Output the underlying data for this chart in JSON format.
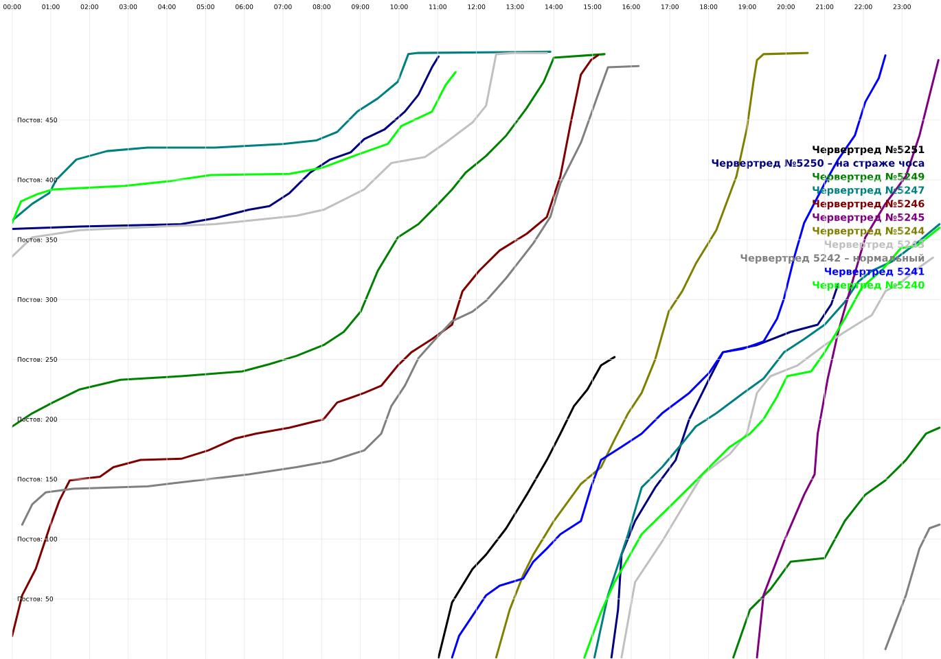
{
  "chart_data": {
    "type": "line",
    "xlim": [
      0,
      24
    ],
    "ylim": [
      0,
      550
    ],
    "xticks": [
      {
        "value": 0,
        "label": "00:00"
      },
      {
        "value": 1,
        "label": "01:00"
      },
      {
        "value": 2,
        "label": "02:00"
      },
      {
        "value": 3,
        "label": "03:00"
      },
      {
        "value": 4,
        "label": "04:00"
      },
      {
        "value": 5,
        "label": "05:00"
      },
      {
        "value": 6,
        "label": "06:00"
      },
      {
        "value": 7,
        "label": "07:00"
      },
      {
        "value": 8,
        "label": "08:00"
      },
      {
        "value": 9,
        "label": "09:00"
      },
      {
        "value": 10,
        "label": "10:00"
      },
      {
        "value": 11,
        "label": "11:00"
      },
      {
        "value": 12,
        "label": "12:00"
      },
      {
        "value": 13,
        "label": "13:00"
      },
      {
        "value": 14,
        "label": "14:00"
      },
      {
        "value": 15,
        "label": "15:00"
      },
      {
        "value": 16,
        "label": "16:00"
      },
      {
        "value": 17,
        "label": "17:00"
      },
      {
        "value": 18,
        "label": "18:00"
      },
      {
        "value": 19,
        "label": "19:00"
      },
      {
        "value": 20,
        "label": "20:00"
      },
      {
        "value": 21,
        "label": "21:00"
      },
      {
        "value": 22,
        "label": "22:00"
      },
      {
        "value": 23,
        "label": "23:00"
      }
    ],
    "yticks": [
      {
        "value": 50,
        "label": "Постов: 50"
      },
      {
        "value": 100,
        "label": "Постов: 100"
      },
      {
        "value": 150,
        "label": "Постов: 150"
      },
      {
        "value": 200,
        "label": "Постов: 200"
      },
      {
        "value": 250,
        "label": "Постов: 250"
      },
      {
        "value": 300,
        "label": "Постов: 300"
      },
      {
        "value": 350,
        "label": "Постов: 350"
      },
      {
        "value": 400,
        "label": "Постов: 400"
      },
      {
        "value": 450,
        "label": "Постов: 450"
      }
    ],
    "grid": true,
    "legend": "right",
    "series": [
      {
        "name": "Червертред №5251",
        "color": "#000000",
        "x": [
          11.02,
          11.37,
          11.9,
          12.25,
          12.77,
          13.3,
          13.82,
          14.17,
          14.52,
          14.87,
          15.22,
          15.57
        ],
        "values": [
          1,
          47,
          75,
          87,
          109,
          137,
          166,
          188,
          211,
          225,
          245,
          252
        ]
      },
      {
        "name": "Червертред №5250 – на страже чоса",
        "color": "#000080",
        "x": [
          0,
          1.75,
          4.37,
          5.25,
          6.12,
          6.65,
          7.17,
          7.7,
          8.22,
          8.75,
          9.1,
          9.62,
          10.15,
          10.5,
          10.85,
          11.02,
          null,
          15.49,
          15.66,
          15.75,
          16.1,
          16.62,
          17.15,
          17.5,
          18.02,
          18.37,
          19.25,
          20.12,
          20.82,
          21.17,
          21.35
        ],
        "values": [
          359,
          361,
          363,
          368,
          375,
          378,
          389,
          406,
          417,
          423,
          434,
          442,
          457,
          471,
          494,
          503,
          null,
          1,
          41,
          87,
          115,
          143,
          166,
          200,
          234,
          256,
          262,
          273,
          279,
          296,
          313
        ]
      },
      {
        "name": "Червертред №5249",
        "color": "#008000",
        "x": [
          0,
          0.52,
          1.05,
          1.75,
          2.8,
          4.37,
          5.95,
          6.65,
          7.35,
          8.05,
          8.57,
          9.01,
          9.45,
          9.97,
          10.5,
          11.02,
          11.37,
          11.72,
          12.25,
          12.77,
          13.3,
          13.74,
          14.0,
          15.31,
          null,
          18.64,
          19.07,
          19.6,
          20.12,
          21.0,
          21.52,
          22.05,
          22.57,
          23.1,
          23.62,
          23.97
        ],
        "values": [
          194,
          205,
          214,
          225,
          233,
          236,
          240,
          246,
          253,
          262,
          273,
          290,
          324,
          352,
          363,
          380,
          392,
          406,
          420,
          437,
          460,
          482,
          502,
          505,
          null,
          1,
          41,
          58,
          81,
          84,
          115,
          137,
          149,
          166,
          188,
          193
        ]
      },
      {
        "name": "Червертред №5247",
        "color": "#008080",
        "x": [
          0,
          0.52,
          0.96,
          1.14,
          1.66,
          2.45,
          3.5,
          5.25,
          7.0,
          7.87,
          8.4,
          8.92,
          9.45,
          9.97,
          10.24,
          10.5,
          13.91,
          null,
          15.05,
          15.4,
          15.92,
          16.27,
          16.8,
          17.32,
          17.67,
          18.2,
          18.9,
          19.42,
          19.95,
          20.47,
          21.0,
          21.52,
          21.87,
          22.22,
          22.75,
          23.45,
          23.97
        ],
        "values": [
          366,
          380,
          389,
          400,
          417,
          424,
          427,
          427,
          430,
          433,
          440,
          457,
          468,
          482,
          505,
          506,
          507,
          null,
          1,
          53,
          104,
          143,
          160,
          180,
          194,
          205,
          222,
          234,
          256,
          267,
          279,
          298,
          315,
          324,
          332,
          349,
          363
        ]
      },
      {
        "name": "Червертред №5246",
        "color": "#800000",
        "x": [
          0,
          0.26,
          0.61,
          0.96,
          1.22,
          1.49,
          2.27,
          2.62,
          3.32,
          4.37,
          5.07,
          5.77,
          6.3,
          7.17,
          8.05,
          8.4,
          9.1,
          9.54,
          9.97,
          10.32,
          10.85,
          11.37,
          11.64,
          12.07,
          12.6,
          13.3,
          13.82,
          14.17,
          14.44,
          14.7,
          14.96,
          15.14
        ],
        "values": [
          19,
          53,
          75,
          109,
          132,
          149,
          152,
          160,
          166,
          167,
          174,
          184,
          188,
          193,
          200,
          214,
          222,
          228,
          245,
          256,
          267,
          279,
          307,
          324,
          341,
          355,
          369,
          403,
          448,
          488,
          500,
          504
        ]
      },
      {
        "name": "Червертред №5245",
        "color": "#800080",
        "x": [
          19.25,
          19.42,
          19.95,
          20.47,
          20.74,
          20.82,
          21.08,
          21.35,
          21.7,
          22.05,
          22.57,
          23.1,
          23.45,
          23.8,
          23.94
        ],
        "values": [
          1,
          53,
          98,
          137,
          154,
          188,
          234,
          273,
          313,
          352,
          380,
          403,
          437,
          482,
          500
        ]
      },
      {
        "name": "Червертред №5244",
        "color": "#808000",
        "x": [
          12.51,
          12.86,
          13.21,
          13.47,
          14.0,
          14.7,
          15.22,
          15.57,
          15.92,
          16.27,
          16.62,
          16.97,
          17.32,
          17.67,
          18.2,
          18.72,
          18.99,
          19.16,
          19.25,
          19.42,
          20.56
        ],
        "values": [
          1,
          41,
          70,
          87,
          115,
          146,
          160,
          183,
          205,
          222,
          250,
          290,
          307,
          330,
          358,
          403,
          443,
          482,
          500,
          505,
          506
        ]
      },
      {
        "name": "Червертред 5243",
        "color": "#c0c0c0",
        "x": [
          0,
          0.52,
          1.75,
          5.25,
          7.35,
          8.05,
          9.1,
          9.8,
          10.67,
          11.2,
          11.9,
          12.25,
          12.51,
          12.95,
          13.82,
          null,
          15.75,
          16.1,
          16.45,
          16.8,
          17.32,
          17.85,
          18.55,
          18.99,
          19.25,
          19.6,
          20.3,
          21.0,
          21.52,
          22.22,
          22.57,
          22.92,
          23.45,
          23.8
        ],
        "values": [
          336,
          352,
          358,
          363,
          370,
          375,
          392,
          414,
          419,
          431,
          448,
          462,
          505,
          506,
          506,
          null,
          1,
          64,
          81,
          98,
          126,
          154,
          171,
          188,
          222,
          236,
          245,
          262,
          273,
          287,
          307,
          313,
          327,
          335
        ]
      },
      {
        "name": "Червертред 5242 – нормальный",
        "color": "#808080",
        "x": [
          0.26,
          0.52,
          0.87,
          1.57,
          3.5,
          5.07,
          6.12,
          7.35,
          8.22,
          9.1,
          9.54,
          9.8,
          10.15,
          10.5,
          10.94,
          11.37,
          11.9,
          12.25,
          12.77,
          13.47,
          13.91,
          14.17,
          14.7,
          15.14,
          15.4,
          16.19,
          null,
          22.57,
          23.1,
          23.45,
          23.71,
          23.97
        ],
        "values": [
          112,
          129,
          139,
          142,
          144,
          150,
          154,
          160,
          165,
          174,
          188,
          211,
          228,
          251,
          267,
          282,
          290,
          299,
          318,
          347,
          369,
          397,
          431,
          471,
          494,
          495,
          null,
          8,
          53,
          92,
          109,
          112
        ]
      },
      {
        "name": "Червертред 5241",
        "color": "#0000ff",
        "x": [
          11.37,
          11.55,
          11.9,
          12.25,
          12.6,
          13.21,
          13.47,
          13.82,
          14.17,
          14.7,
          14.96,
          15.22,
          15.75,
          16.27,
          16.8,
          17.5,
          18.02,
          18.37,
          18.9,
          19.42,
          19.77,
          19.95,
          20.21,
          20.47,
          21.0,
          21.35,
          21.78,
          22.05,
          22.4,
          22.57
        ],
        "values": [
          1,
          19,
          36,
          53,
          61,
          67,
          81,
          92,
          104,
          115,
          143,
          166,
          177,
          188,
          205,
          222,
          239,
          256,
          259,
          265,
          284,
          301,
          335,
          364,
          397,
          417,
          437,
          465,
          485,
          504
        ]
      },
      {
        "name": "Червертред №5240",
        "color": "#00ff00",
        "x": [
          0,
          0.23,
          0.65,
          1.05,
          2.92,
          4.08,
          5.13,
          7.17,
          8.0,
          8.92,
          9.71,
          10.06,
          10.85,
          11.2,
          11.46,
          null,
          14.79,
          15.22,
          15.57,
          16.27,
          17.5,
          18.02,
          18.55,
          19.07,
          19.42,
          19.77,
          20.03,
          20.65,
          21.0,
          21.52,
          21.96,
          22.49,
          22.97,
          23.39,
          23.97
        ],
        "values": [
          364,
          382,
          388,
          392,
          395,
          399,
          404,
          405,
          410,
          421,
          430,
          445,
          457,
          479,
          490,
          null,
          1,
          39,
          64,
          104,
          143,
          160,
          177,
          188,
          200,
          219,
          236,
          240,
          256,
          284,
          310,
          325,
          343,
          345,
          360
        ]
      }
    ]
  }
}
